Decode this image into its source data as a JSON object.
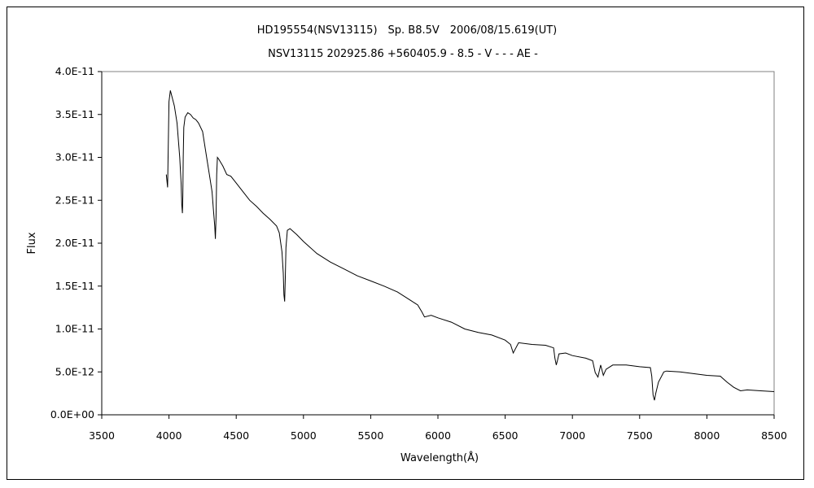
{
  "chart_data": {
    "type": "line",
    "title": "HD195554(NSV13115)　Sp. B8.5V　2006/08/15.619(UT)",
    "subtitle": "NSV13115 202925.86 +560405.9 - 8.5 - V - - - AE -",
    "xlabel": "Wavelength(Å)",
    "ylabel": "Flux",
    "xlim": [
      3500,
      8500
    ],
    "ylim": [
      0,
      4e-11
    ],
    "xticks": [
      "3500",
      "4000",
      "4500",
      "5000",
      "5500",
      "6000",
      "6500",
      "7000",
      "7500",
      "8000",
      "8500"
    ],
    "yticks": [
      "0.0E+00",
      "5.0E-12",
      "1.0E-11",
      "1.5E-11",
      "2.0E-11",
      "2.5E-11",
      "3.0E-11",
      "3.5E-11",
      "4.0E-11"
    ],
    "grid": false,
    "line_color": "#000000",
    "series": [
      {
        "x": [
          3980,
          3990,
          4000,
          4010,
          4020,
          4040,
          4060,
          4080,
          4090,
          4095,
          4100,
          4103,
          4106,
          4110,
          4120,
          4140,
          4160,
          4180,
          4200,
          4220,
          4250,
          4270,
          4300,
          4320,
          4330,
          4340,
          4345,
          4350,
          4355,
          4360,
          4370,
          4400,
          4430,
          4460,
          4500,
          4550,
          4600,
          4650,
          4700,
          4750,
          4800,
          4820,
          4840,
          4850,
          4855,
          4860,
          4865,
          4870,
          4880,
          4900,
          4950,
          5000,
          5100,
          5200,
          5300,
          5400,
          5500,
          5600,
          5700,
          5800,
          5850,
          5880,
          5900,
          5950,
          6000,
          6100,
          6200,
          6300,
          6400,
          6500,
          6540,
          6560,
          6580,
          6600,
          6700,
          6800,
          6860,
          6870,
          6880,
          6890,
          6900,
          6950,
          7000,
          7100,
          7150,
          7170,
          7190,
          7210,
          7230,
          7250,
          7300,
          7400,
          7500,
          7580,
          7590,
          7600,
          7610,
          7620,
          7640,
          7680,
          7700,
          7800,
          7900,
          8000,
          8100,
          8150,
          8200,
          8250,
          8300,
          8400,
          8500
        ],
        "y": [
          2.8e-11,
          2.65e-11,
          3.65e-11,
          3.78e-11,
          3.72e-11,
          3.6e-11,
          3.4e-11,
          3e-11,
          2.7e-11,
          2.45e-11,
          2.35e-11,
          2.55e-11,
          3e-11,
          3.35e-11,
          3.47e-11,
          3.52e-11,
          3.5e-11,
          3.46e-11,
          3.44e-11,
          3.4e-11,
          3.3e-11,
          3.1e-11,
          2.8e-11,
          2.6e-11,
          2.4e-11,
          2.2e-11,
          2.05e-11,
          2.3e-11,
          2.8e-11,
          3e-11,
          2.98e-11,
          2.9e-11,
          2.8e-11,
          2.78e-11,
          2.7e-11,
          2.6e-11,
          2.5e-11,
          2.43e-11,
          2.35e-11,
          2.28e-11,
          2.2e-11,
          2.12e-11,
          1.9e-11,
          1.65e-11,
          1.4e-11,
          1.32e-11,
          1.6e-11,
          1.95e-11,
          2.15e-11,
          2.17e-11,
          2.1e-11,
          2.02e-11,
          1.88e-11,
          1.78e-11,
          1.7e-11,
          1.62e-11,
          1.56e-11,
          1.5e-11,
          1.43e-11,
          1.33e-11,
          1.28e-11,
          1.2e-11,
          1.14e-11,
          1.16e-11,
          1.13e-11,
          1.08e-11,
          1e-11,
          9.6e-12,
          9.3e-12,
          8.7e-12,
          8.2e-12,
          7.2e-12,
          7.8e-12,
          8.4e-12,
          8.2e-12,
          8.1e-12,
          7.8e-12,
          6.6e-12,
          5.8e-12,
          6.4e-12,
          7.1e-12,
          7.2e-12,
          6.9e-12,
          6.6e-12,
          6.3e-12,
          4.9e-12,
          4.4e-12,
          5.8e-12,
          4.6e-12,
          5.3e-12,
          5.8e-12,
          5.8e-12,
          5.6e-12,
          5.5e-12,
          4.5e-12,
          2.3e-12,
          1.7e-12,
          2.5e-12,
          3.8e-12,
          5e-12,
          5.1e-12,
          5e-12,
          4.8e-12,
          4.6e-12,
          4.5e-12,
          3.8e-12,
          3.2e-12,
          2.8e-12,
          2.9e-12,
          2.8e-12,
          2.7e-12
        ]
      }
    ]
  }
}
